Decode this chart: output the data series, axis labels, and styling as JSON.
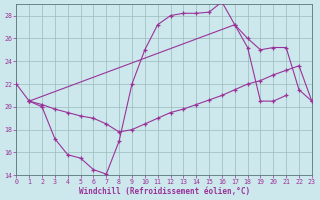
{
  "bg_color": "#cce8ec",
  "line_color": "#993399",
  "grid_color": "#99bbbb",
  "xlabel": "Windchill (Refroidissement éolien,°C)",
  "xlim": [
    0,
    23
  ],
  "ylim": [
    14,
    29
  ],
  "xticks": [
    0,
    1,
    2,
    3,
    4,
    5,
    6,
    7,
    8,
    9,
    10,
    11,
    12,
    13,
    14,
    15,
    16,
    17,
    18,
    19,
    20,
    21,
    22,
    23
  ],
  "yticks": [
    14,
    16,
    18,
    20,
    22,
    24,
    26,
    28
  ],
  "curve1_x": [
    0,
    1,
    2,
    3,
    4,
    5,
    6,
    7,
    8,
    9,
    10,
    11,
    12,
    13,
    14,
    15,
    16,
    17,
    18,
    19,
    20,
    21
  ],
  "curve1_y": [
    22,
    20.5,
    20,
    17.2,
    15.8,
    15.5,
    14.5,
    14.1,
    17.0,
    22.0,
    25.0,
    27.2,
    28.0,
    28.2,
    28.2,
    28.3,
    29.2,
    27.2,
    25.2,
    20.5,
    20.5,
    21.0
  ],
  "curve2_x": [
    1,
    17,
    18,
    19,
    20,
    21,
    22,
    23
  ],
  "curve2_y": [
    20.5,
    27.2,
    26.0,
    25.0,
    25.2,
    25.2,
    21.5,
    20.5
  ],
  "curve3_x": [
    1,
    2,
    3,
    4,
    5,
    6,
    7,
    8,
    9,
    10,
    11,
    12,
    13,
    14,
    15,
    16,
    17,
    18,
    19,
    20,
    21,
    22,
    23
  ],
  "curve3_y": [
    20.5,
    20.2,
    19.8,
    19.5,
    19.2,
    19.0,
    18.5,
    17.8,
    18.0,
    18.5,
    19.0,
    19.5,
    19.8,
    20.2,
    20.6,
    21.0,
    21.5,
    22.0,
    22.3,
    22.8,
    23.2,
    23.6,
    20.5
  ]
}
